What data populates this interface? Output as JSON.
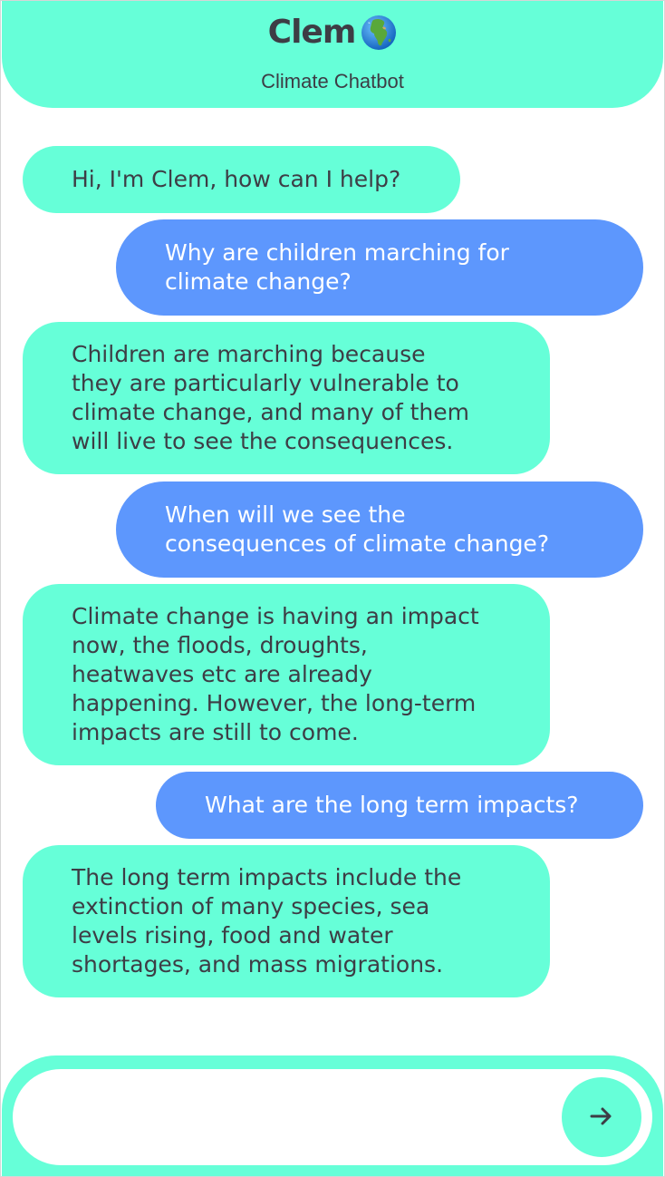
{
  "header": {
    "title": "Clem",
    "title_icon": "globe-icon",
    "subtitle": "Climate Chatbot"
  },
  "messages": [
    {
      "sender": "bot",
      "text": "Hi, I'm Clem, how can I help?"
    },
    {
      "sender": "user",
      "text": "Why are children marching for\nclimate change?"
    },
    {
      "sender": "bot",
      "text": "Children are marching because\nthey are particularly vulnerable to\nclimate change, and many of them\nwill live to see the consequences."
    },
    {
      "sender": "user",
      "text": "When will we see the\nconsequences of climate change?"
    },
    {
      "sender": "bot",
      "text": "Climate change is having an impact\nnow, the floods, droughts,\nheatwaves etc are already\nhappening. However, the long-term\nimpacts are still to come."
    },
    {
      "sender": "user",
      "text": "What are the long term impacts?"
    },
    {
      "sender": "bot",
      "text": "The long term impacts include the\nextinction of many species, sea\nlevels rising, food and water\nshortages, and mass migrations."
    }
  ],
  "composer": {
    "value": "",
    "send_icon": "arrow-right-icon"
  },
  "colors": {
    "accent": "#66ffd8",
    "user_bubble": "#5d97fd",
    "text_dark": "#3d3d45"
  }
}
